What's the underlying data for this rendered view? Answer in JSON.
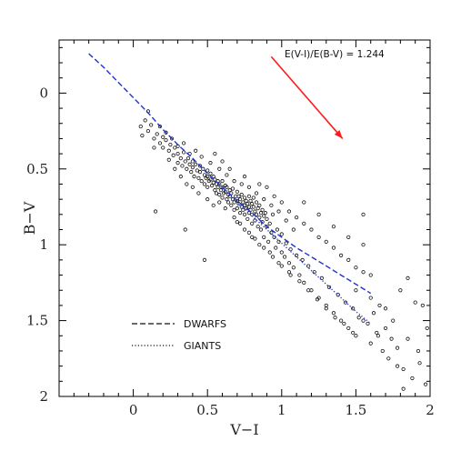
{
  "chart_data": {
    "type": "scatter",
    "title": "",
    "xlabel": "V−I",
    "ylabel": "B−V",
    "xlim": [
      -0.5,
      2.0
    ],
    "ylim": [
      2.0,
      -0.35
    ],
    "y_inverted": true,
    "x_ticks": [
      0,
      0.5,
      1,
      1.5,
      2
    ],
    "x_tick_labels": [
      "0",
      "0.5",
      "1",
      "1.5",
      "2"
    ],
    "y_ticks": [
      0,
      0.5,
      1,
      1.5,
      2
    ],
    "y_tick_labels": [
      "0",
      "0.5",
      "1",
      "1.5",
      "2"
    ],
    "grid": false,
    "annotation": {
      "text": "E(V-I)/E(B-V) = 1.244",
      "arrow_from": [
        0.93,
        -0.24
      ],
      "arrow_to": [
        1.41,
        0.3
      ],
      "color": "#ff1a1a"
    },
    "series": [
      {
        "name": "DWARFS",
        "kind": "dashed-line",
        "color": "#2233cc",
        "x": [
          -0.3,
          -0.2,
          -0.1,
          0.0,
          0.1,
          0.2,
          0.3,
          0.4,
          0.5,
          0.6,
          0.7,
          0.8,
          0.9,
          1.0,
          1.1,
          1.2,
          1.3,
          1.4,
          1.5,
          1.6
        ],
        "y": [
          -0.26,
          -0.17,
          -0.07,
          0.03,
          0.13,
          0.24,
          0.34,
          0.43,
          0.53,
          0.62,
          0.71,
          0.79,
          0.88,
          0.95,
          1.02,
          1.08,
          1.14,
          1.2,
          1.26,
          1.32
        ]
      },
      {
        "name": "GIANTS",
        "kind": "dotted-line",
        "color": "#2233cc",
        "x": [
          0.6,
          0.7,
          0.8,
          0.9,
          1.0,
          1.1,
          1.2,
          1.3,
          1.4,
          1.5,
          1.6
        ],
        "y": [
          0.63,
          0.72,
          0.81,
          0.9,
          0.99,
          1.08,
          1.17,
          1.26,
          1.35,
          1.44,
          1.52
        ]
      }
    ],
    "scatter_points": {
      "name": "stars",
      "color": "#111111",
      "points": [
        [
          0.05,
          0.22
        ],
        [
          0.08,
          0.18
        ],
        [
          0.1,
          0.25
        ],
        [
          0.12,
          0.21
        ],
        [
          0.14,
          0.3
        ],
        [
          0.16,
          0.27
        ],
        [
          0.18,
          0.33
        ],
        [
          0.2,
          0.29
        ],
        [
          0.2,
          0.36
        ],
        [
          0.22,
          0.31
        ],
        [
          0.24,
          0.38
        ],
        [
          0.25,
          0.34
        ],
        [
          0.27,
          0.41
        ],
        [
          0.28,
          0.36
        ],
        [
          0.3,
          0.4
        ],
        [
          0.3,
          0.46
        ],
        [
          0.32,
          0.43
        ],
        [
          0.33,
          0.48
        ],
        [
          0.34,
          0.39
        ],
        [
          0.35,
          0.45
        ],
        [
          0.36,
          0.5
        ],
        [
          0.37,
          0.43
        ],
        [
          0.38,
          0.47
        ],
        [
          0.39,
          0.52
        ],
        [
          0.4,
          0.45
        ],
        [
          0.4,
          0.49
        ],
        [
          0.41,
          0.55
        ],
        [
          0.42,
          0.47
        ],
        [
          0.43,
          0.51
        ],
        [
          0.44,
          0.56
        ],
        [
          0.45,
          0.48
        ],
        [
          0.45,
          0.52
        ],
        [
          0.46,
          0.58
        ],
        [
          0.47,
          0.5
        ],
        [
          0.48,
          0.54
        ],
        [
          0.48,
          0.6
        ],
        [
          0.49,
          0.56
        ],
        [
          0.5,
          0.51
        ],
        [
          0.5,
          0.55
        ],
        [
          0.5,
          0.62
        ],
        [
          0.51,
          0.58
        ],
        [
          0.52,
          0.53
        ],
        [
          0.52,
          0.57
        ],
        [
          0.53,
          0.61
        ],
        [
          0.54,
          0.55
        ],
        [
          0.54,
          0.59
        ],
        [
          0.55,
          0.64
        ],
        [
          0.55,
          0.57
        ],
        [
          0.56,
          0.6
        ],
        [
          0.56,
          0.66
        ],
        [
          0.57,
          0.58
        ],
        [
          0.57,
          0.62
        ],
        [
          0.58,
          0.67
        ],
        [
          0.58,
          0.6
        ],
        [
          0.59,
          0.64
        ],
        [
          0.6,
          0.58
        ],
        [
          0.6,
          0.62
        ],
        [
          0.6,
          0.69
        ],
        [
          0.61,
          0.66
        ],
        [
          0.62,
          0.61
        ],
        [
          0.62,
          0.65
        ],
        [
          0.63,
          0.7
        ],
        [
          0.63,
          0.62
        ],
        [
          0.64,
          0.67
        ],
        [
          0.64,
          0.72
        ],
        [
          0.65,
          0.64
        ],
        [
          0.65,
          0.68
        ],
        [
          0.66,
          0.74
        ],
        [
          0.66,
          0.66
        ],
        [
          0.67,
          0.7
        ],
        [
          0.67,
          0.63
        ],
        [
          0.68,
          0.72
        ],
        [
          0.68,
          0.77
        ],
        [
          0.69,
          0.68
        ],
        [
          0.7,
          0.65
        ],
        [
          0.7,
          0.71
        ],
        [
          0.7,
          0.76
        ],
        [
          0.71,
          0.68
        ],
        [
          0.71,
          0.73
        ],
        [
          0.72,
          0.79
        ],
        [
          0.72,
          0.7
        ],
        [
          0.73,
          0.75
        ],
        [
          0.73,
          0.67
        ],
        [
          0.74,
          0.72
        ],
        [
          0.74,
          0.77
        ],
        [
          0.75,
          0.69
        ],
        [
          0.75,
          0.74
        ],
        [
          0.75,
          0.8
        ],
        [
          0.76,
          0.71
        ],
        [
          0.76,
          0.76
        ],
        [
          0.77,
          0.73
        ],
        [
          0.77,
          0.83
        ],
        [
          0.78,
          0.68
        ],
        [
          0.78,
          0.75
        ],
        [
          0.78,
          0.79
        ],
        [
          0.79,
          0.71
        ],
        [
          0.79,
          0.77
        ],
        [
          0.8,
          0.73
        ],
        [
          0.8,
          0.8
        ],
        [
          0.8,
          0.86
        ],
        [
          0.81,
          0.69
        ],
        [
          0.81,
          0.75
        ],
        [
          0.82,
          0.78
        ],
        [
          0.82,
          0.84
        ],
        [
          0.83,
          0.72
        ],
        [
          0.83,
          0.8
        ],
        [
          0.84,
          0.76
        ],
        [
          0.84,
          0.88
        ],
        [
          0.85,
          0.74
        ],
        [
          0.85,
          0.82
        ],
        [
          0.86,
          0.79
        ],
        [
          0.86,
          0.9
        ],
        [
          0.87,
          0.77
        ],
        [
          0.87,
          0.85
        ],
        [
          0.88,
          0.81
        ],
        [
          0.88,
          0.95
        ],
        [
          0.89,
          0.79
        ],
        [
          0.9,
          0.88
        ],
        [
          0.9,
          0.83
        ],
        [
          0.91,
          0.98
        ],
        [
          0.92,
          0.86
        ],
        [
          0.93,
          0.92
        ],
        [
          0.94,
          0.8
        ],
        [
          0.95,
          0.95
        ],
        [
          0.96,
          1.02
        ],
        [
          0.97,
          0.9
        ],
        [
          0.98,
          0.98
        ],
        [
          1.0,
          1.05
        ],
        [
          1.0,
          0.93
        ],
        [
          1.02,
          1.08
        ],
        [
          1.03,
          0.99
        ],
        [
          1.05,
          1.12
        ],
        [
          1.06,
          1.03
        ],
        [
          1.08,
          1.15
        ],
        [
          1.1,
          1.07
        ],
        [
          1.12,
          1.2
        ],
        [
          1.14,
          1.1
        ],
        [
          1.15,
          1.25
        ],
        [
          1.18,
          1.14
        ],
        [
          1.2,
          1.3
        ],
        [
          1.22,
          1.18
        ],
        [
          1.25,
          1.35
        ],
        [
          1.27,
          1.22
        ],
        [
          1.3,
          1.4
        ],
        [
          1.32,
          1.28
        ],
        [
          1.35,
          1.45
        ],
        [
          1.38,
          1.33
        ],
        [
          1.4,
          1.5
        ],
        [
          1.43,
          1.38
        ],
        [
          1.45,
          1.55
        ],
        [
          1.48,
          1.42
        ],
        [
          1.5,
          1.6
        ],
        [
          1.55,
          1.5
        ],
        [
          1.6,
          1.65
        ],
        [
          1.62,
          1.45
        ],
        [
          1.65,
          1.6
        ],
        [
          1.7,
          1.55
        ],
        [
          1.72,
          1.75
        ],
        [
          1.78,
          1.68
        ],
        [
          1.82,
          1.82
        ],
        [
          1.85,
          1.62
        ],
        [
          1.88,
          1.88
        ],
        [
          1.93,
          1.78
        ],
        [
          1.95,
          1.4
        ],
        [
          1.98,
          1.55
        ],
        [
          1.97,
          1.92
        ],
        [
          0.9,
          0.62
        ],
        [
          0.95,
          0.68
        ],
        [
          1.0,
          0.72
        ],
        [
          1.05,
          0.78
        ],
        [
          1.1,
          0.82
        ],
        [
          1.15,
          0.86
        ],
        [
          1.2,
          0.9
        ],
        [
          1.25,
          0.95
        ],
        [
          1.3,
          0.98
        ],
        [
          1.35,
          1.02
        ],
        [
          1.4,
          1.07
        ],
        [
          1.45,
          1.1
        ],
        [
          1.5,
          1.15
        ],
        [
          1.55,
          1.18
        ],
        [
          1.6,
          1.2
        ],
        [
          1.15,
          0.72
        ],
        [
          1.25,
          0.8
        ],
        [
          1.35,
          0.88
        ],
        [
          1.45,
          0.95
        ],
        [
          1.55,
          1.0
        ],
        [
          1.5,
          1.3
        ],
        [
          1.6,
          1.35
        ],
        [
          1.7,
          1.42
        ],
        [
          1.75,
          1.5
        ],
        [
          1.8,
          1.3
        ],
        [
          1.85,
          1.22
        ],
        [
          1.9,
          1.38
        ],
        [
          1.92,
          1.7
        ],
        [
          1.78,
          1.8
        ],
        [
          1.82,
          1.95
        ],
        [
          0.15,
          0.78
        ],
        [
          0.35,
          0.9
        ],
        [
          0.48,
          1.1
        ],
        [
          1.55,
          0.8
        ],
        [
          0.55,
          0.4
        ],
        [
          0.6,
          0.45
        ],
        [
          0.65,
          0.5
        ],
        [
          0.75,
          0.55
        ],
        [
          0.85,
          0.6
        ],
        [
          0.42,
          0.38
        ],
        [
          0.7,
          0.85
        ],
        [
          0.75,
          0.9
        ],
        [
          0.8,
          0.95
        ],
        [
          0.85,
          1.0
        ],
        [
          0.92,
          1.05
        ],
        [
          0.98,
          1.12
        ],
        [
          1.05,
          1.18
        ],
        [
          1.12,
          1.24
        ],
        [
          1.18,
          1.3
        ],
        [
          1.24,
          1.36
        ],
        [
          1.3,
          1.42
        ],
        [
          1.36,
          1.48
        ],
        [
          1.42,
          1.52
        ],
        [
          1.48,
          1.58
        ],
        [
          1.52,
          1.48
        ],
        [
          1.58,
          1.52
        ],
        [
          1.64,
          1.58
        ],
        [
          1.68,
          1.7
        ],
        [
          1.74,
          1.62
        ],
        [
          1.66,
          1.4
        ],
        [
          0.58,
          0.72
        ],
        [
          0.62,
          0.76
        ],
        [
          0.68,
          0.82
        ],
        [
          0.72,
          0.86
        ],
        [
          0.78,
          0.92
        ],
        [
          0.82,
          0.96
        ],
        [
          0.88,
          1.02
        ],
        [
          0.94,
          1.08
        ],
        [
          1.0,
          1.14
        ],
        [
          1.06,
          1.2
        ],
        [
          0.28,
          0.5
        ],
        [
          0.32,
          0.55
        ],
        [
          0.36,
          0.6
        ],
        [
          0.4,
          0.62
        ],
        [
          0.44,
          0.66
        ],
        [
          0.5,
          0.7
        ],
        [
          0.54,
          0.74
        ],
        [
          0.46,
          0.42
        ],
        [
          0.52,
          0.46
        ],
        [
          0.58,
          0.5
        ],
        [
          0.63,
          0.54
        ],
        [
          0.68,
          0.58
        ],
        [
          0.73,
          0.6
        ],
        [
          0.78,
          0.62
        ],
        [
          0.83,
          0.66
        ],
        [
          0.88,
          0.7
        ],
        [
          0.93,
          0.74
        ],
        [
          0.98,
          0.78
        ],
        [
          1.03,
          0.84
        ],
        [
          1.08,
          0.9
        ],
        [
          0.1,
          0.12
        ],
        [
          0.06,
          0.28
        ],
        [
          0.18,
          0.22
        ],
        [
          0.22,
          0.26
        ],
        [
          0.26,
          0.3
        ],
        [
          0.14,
          0.36
        ],
        [
          0.24,
          0.44
        ],
        [
          0.3,
          0.35
        ],
        [
          0.34,
          0.33
        ],
        [
          0.38,
          0.4
        ]
      ]
    },
    "legend": {
      "placement": "lower-left",
      "entries": [
        {
          "label": "DWARFS",
          "style": "dashed"
        },
        {
          "label": "GIANTS",
          "style": "dotted"
        }
      ]
    }
  }
}
